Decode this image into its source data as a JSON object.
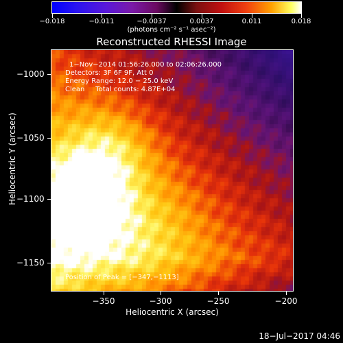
{
  "colorbar": {
    "tick_labels": [
      "−0.018",
      "−0.011",
      "−0.0037",
      "0.0037",
      "0.011",
      "0.018"
    ],
    "units_label": "(photons cm⁻² s⁻¹ asec⁻²)",
    "colors": [
      "#0000ff",
      "#7a1aa8",
      "#000000",
      "#c01010",
      "#ffa000",
      "#ffffff"
    ]
  },
  "plot": {
    "title": "Reconstructed RHESSI Image",
    "xlabel": "Heliocentric X (arcsec)",
    "ylabel": "Heliocentric Y (arcsec)",
    "x_ticks": [
      "−350",
      "−300",
      "−250",
      "−200"
    ],
    "y_ticks": [
      "−1000",
      "−1050",
      "−1100",
      "−1150"
    ]
  },
  "info": {
    "time_range": "1−Nov−2014 01:56:26.000 to 02:06:26.000",
    "detectors": "Detectors: 3F 6F 9F, Att 0",
    "energy_range": "Energy Range: 12.0 − 25.0 keV",
    "method_counts": "Clean     Total counts: 4.87E+04",
    "peak": "Position of Peak = [−347,−1113]"
  },
  "footer": {
    "timestamp": "18−Jul−2017 04:46"
  }
}
